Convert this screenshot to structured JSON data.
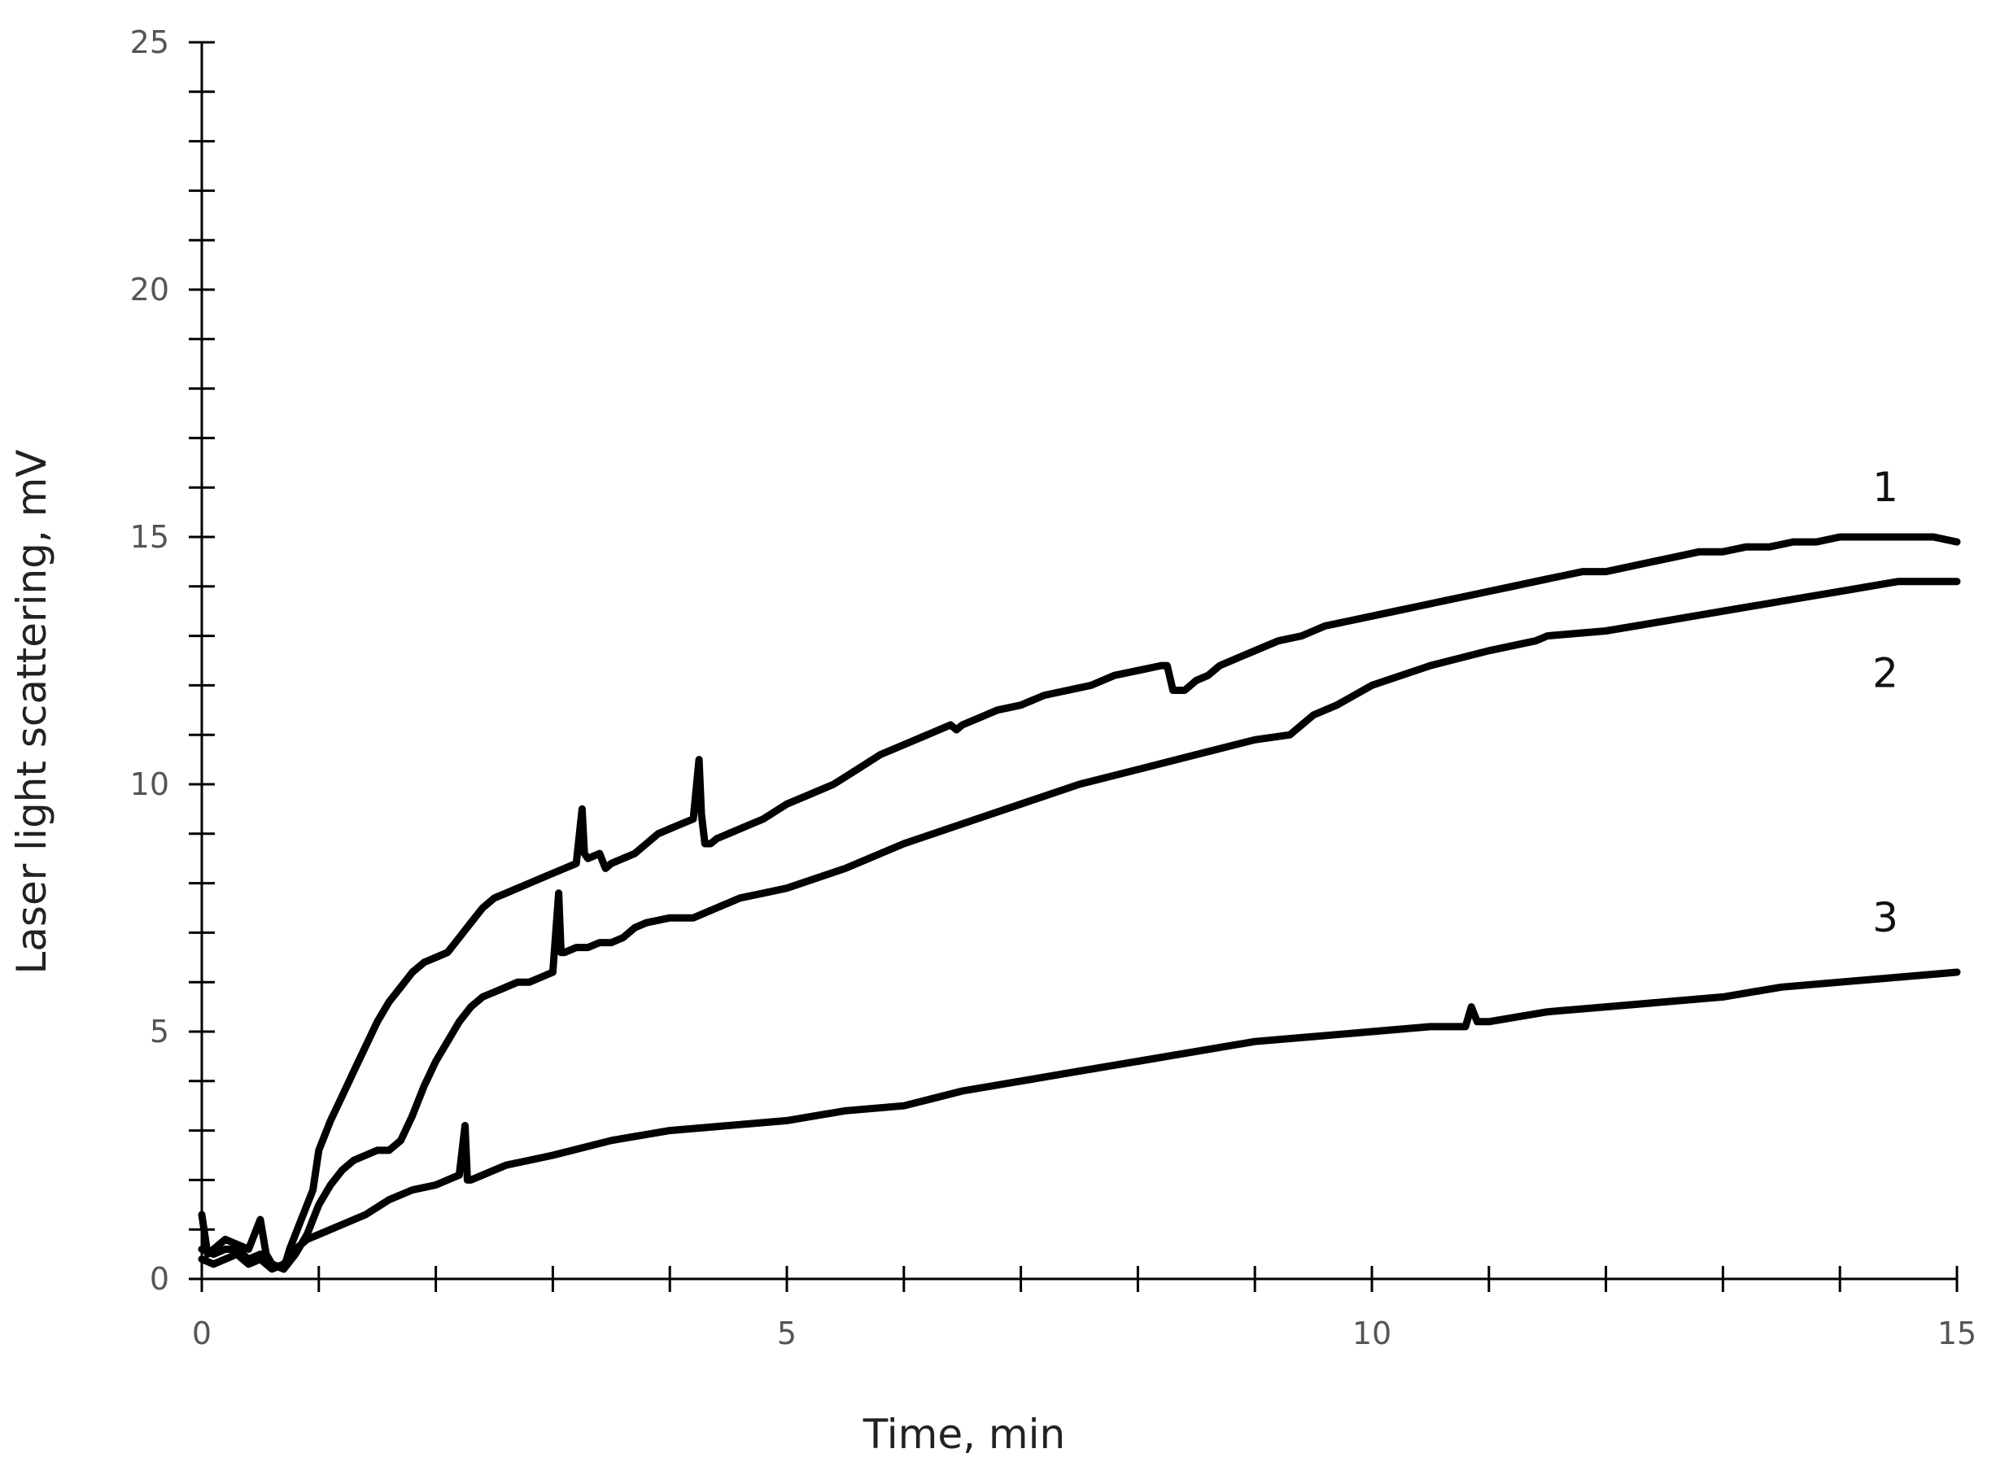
{
  "chart_data": {
    "type": "line",
    "title": "",
    "xlabel": "Time, min",
    "ylabel": "Laser light scattering, mV",
    "xlim": [
      0,
      15
    ],
    "ylim": [
      0,
      25
    ],
    "x_major_ticks": [
      0,
      5,
      10,
      15
    ],
    "x_tick_labels": [
      "0",
      "5",
      "10",
      "15"
    ],
    "x_minor_step": 1,
    "y_major_ticks": [
      0,
      5,
      10,
      15,
      20,
      25
    ],
    "y_tick_labels": [
      "0",
      "5",
      "10",
      "15",
      "20",
      "25"
    ],
    "y_minor_step": 1,
    "grid": false,
    "legend": "none",
    "line_color": "#000000",
    "series": [
      {
        "name": "1",
        "x": [
          0,
          0.05,
          0.1,
          0.2,
          0.3,
          0.4,
          0.5,
          0.55,
          0.6,
          0.7,
          0.75,
          0.85,
          0.95,
          1.0,
          1.1,
          1.2,
          1.3,
          1.4,
          1.5,
          1.6,
          1.7,
          1.8,
          1.9,
          2.0,
          2.1,
          2.2,
          2.3,
          2.4,
          2.5,
          2.6,
          2.7,
          2.8,
          2.9,
          3.0,
          3.1,
          3.2,
          3.25,
          3.27,
          3.3,
          3.4,
          3.45,
          3.5,
          3.6,
          3.7,
          3.8,
          3.9,
          4.0,
          4.1,
          4.2,
          4.25,
          4.27,
          4.3,
          4.35,
          4.4,
          4.5,
          4.6,
          4.7,
          4.8,
          5.0,
          5.2,
          5.4,
          5.6,
          5.8,
          6.0,
          6.2,
          6.4,
          6.45,
          6.5,
          6.6,
          6.8,
          7.0,
          7.2,
          7.4,
          7.6,
          7.8,
          8.0,
          8.2,
          8.25,
          8.3,
          8.4,
          8.5,
          8.6,
          8.7,
          8.8,
          9.0,
          9.2,
          9.4,
          9.6,
          9.8,
          10.0,
          10.2,
          10.4,
          10.6,
          10.8,
          11.0,
          11.2,
          11.4,
          11.6,
          11.8,
          12.0,
          12.2,
          12.4,
          12.6,
          12.8,
          13.0,
          13.2,
          13.4,
          13.6,
          13.8,
          14.0,
          14.2,
          14.4,
          14.6,
          14.8,
          15.0
        ],
        "values": [
          1.3,
          0.5,
          0.6,
          0.8,
          0.7,
          0.6,
          1.2,
          0.5,
          0.3,
          0.2,
          0.6,
          1.2,
          1.8,
          2.6,
          3.2,
          3.7,
          4.2,
          4.7,
          5.2,
          5.6,
          5.9,
          6.2,
          6.4,
          6.5,
          6.6,
          6.9,
          7.2,
          7.5,
          7.7,
          7.8,
          7.9,
          8.0,
          8.1,
          8.2,
          8.3,
          8.4,
          9.5,
          8.6,
          8.5,
          8.6,
          8.3,
          8.4,
          8.5,
          8.6,
          8.8,
          9.0,
          9.1,
          9.2,
          9.3,
          10.5,
          9.4,
          8.8,
          8.8,
          8.9,
          9.0,
          9.1,
          9.2,
          9.3,
          9.6,
          9.8,
          10.0,
          10.3,
          10.6,
          10.8,
          11.0,
          11.2,
          11.1,
          11.2,
          11.3,
          11.5,
          11.6,
          11.8,
          11.9,
          12.0,
          12.2,
          12.3,
          12.4,
          12.4,
          11.9,
          11.9,
          12.1,
          12.2,
          12.4,
          12.5,
          12.7,
          12.9,
          13.0,
          13.2,
          13.3,
          13.4,
          13.5,
          13.6,
          13.7,
          13.8,
          13.9,
          14.0,
          14.1,
          14.2,
          14.3,
          14.3,
          14.4,
          14.5,
          14.6,
          14.7,
          14.7,
          14.8,
          14.8,
          14.9,
          14.9,
          15.0,
          15.0,
          15.0,
          15.0,
          15.0,
          14.9
        ]
      },
      {
        "name": "2",
        "x": [
          0,
          0.1,
          0.2,
          0.3,
          0.4,
          0.5,
          0.6,
          0.7,
          0.8,
          0.9,
          1.0,
          1.1,
          1.2,
          1.3,
          1.4,
          1.5,
          1.6,
          1.7,
          1.8,
          1.9,
          2.0,
          2.1,
          2.2,
          2.3,
          2.4,
          2.5,
          2.6,
          2.7,
          2.8,
          2.9,
          3.0,
          3.05,
          3.07,
          3.1,
          3.2,
          3.3,
          3.4,
          3.5,
          3.6,
          3.7,
          3.8,
          4.0,
          4.2,
          4.4,
          4.6,
          4.8,
          5.0,
          5.5,
          6.0,
          6.5,
          7.0,
          7.5,
          8.0,
          8.5,
          9.0,
          9.3,
          9.5,
          9.7,
          10.0,
          10.5,
          11.0,
          11.4,
          11.5,
          12.0,
          12.5,
          13.0,
          13.5,
          14.0,
          14.5,
          15.0
        ],
        "values": [
          0.6,
          0.5,
          0.6,
          0.6,
          0.4,
          0.5,
          0.3,
          0.2,
          0.5,
          0.9,
          1.5,
          1.9,
          2.2,
          2.4,
          2.5,
          2.6,
          2.6,
          2.8,
          3.3,
          3.9,
          4.4,
          4.8,
          5.2,
          5.5,
          5.7,
          5.8,
          5.9,
          6.0,
          6.0,
          6.1,
          6.2,
          7.8,
          6.6,
          6.6,
          6.7,
          6.7,
          6.8,
          6.8,
          6.9,
          7.1,
          7.2,
          7.3,
          7.3,
          7.5,
          7.7,
          7.8,
          7.9,
          8.3,
          8.8,
          9.2,
          9.6,
          10.0,
          10.3,
          10.6,
          10.9,
          11.0,
          11.4,
          11.6,
          12.0,
          12.4,
          12.7,
          12.9,
          13.0,
          13.1,
          13.3,
          13.5,
          13.7,
          13.9,
          14.1,
          14.1
        ]
      },
      {
        "name": "3",
        "x": [
          0,
          0.1,
          0.2,
          0.3,
          0.4,
          0.5,
          0.6,
          0.7,
          0.8,
          0.9,
          1.0,
          1.2,
          1.4,
          1.6,
          1.8,
          2.0,
          2.1,
          2.2,
          2.25,
          2.27,
          2.3,
          2.4,
          2.6,
          2.8,
          3.0,
          3.5,
          4.0,
          4.5,
          5.0,
          5.5,
          6.0,
          6.5,
          7.0,
          7.5,
          8.0,
          8.5,
          9.0,
          9.5,
          10.0,
          10.5,
          10.8,
          10.85,
          10.9,
          11.0,
          11.5,
          12.0,
          12.5,
          13.0,
          13.5,
          14.0,
          14.5,
          15.0
        ],
        "values": [
          0.4,
          0.3,
          0.4,
          0.5,
          0.3,
          0.4,
          0.2,
          0.3,
          0.6,
          0.8,
          0.9,
          1.1,
          1.3,
          1.6,
          1.8,
          1.9,
          2.0,
          2.1,
          3.1,
          2.0,
          2.0,
          2.1,
          2.3,
          2.4,
          2.5,
          2.8,
          3.0,
          3.1,
          3.2,
          3.4,
          3.5,
          3.8,
          4.0,
          4.2,
          4.4,
          4.6,
          4.8,
          4.9,
          5.0,
          5.1,
          5.1,
          5.5,
          5.2,
          5.2,
          5.4,
          5.5,
          5.6,
          5.7,
          5.9,
          6.0,
          6.1,
          6.2
        ]
      }
    ]
  }
}
